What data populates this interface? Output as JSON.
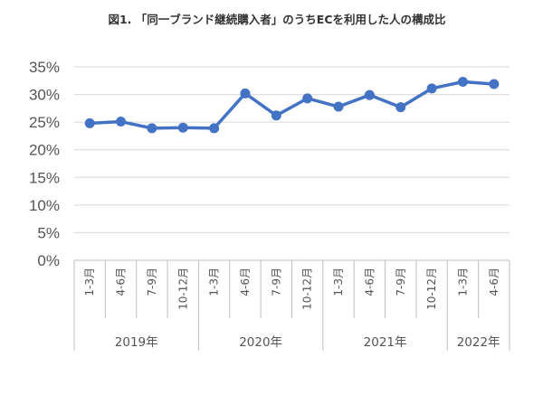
{
  "chart_data": {
    "type": "line",
    "title": "図1. 「同一ブランド継続購入者」のうちECを利用した人の構成比",
    "xlabel": "",
    "ylabel": "",
    "ylim": [
      0,
      35
    ],
    "ytick_values": [
      0,
      5,
      10,
      15,
      20,
      25,
      30,
      35
    ],
    "ytick_labels": [
      "0%",
      "5%",
      "10%",
      "15%",
      "20%",
      "25%",
      "30%",
      "35%"
    ],
    "grid": true,
    "legend": "none",
    "categories": [
      "1-3月",
      "4-6月",
      "7-9月",
      "10-12月",
      "1-3月",
      "4-6月",
      "7-9月",
      "10-12月",
      "1-3月",
      "4-6月",
      "7-9月",
      "10-12月",
      "1-3月",
      "4-6月"
    ],
    "groups": [
      {
        "label": "2019年",
        "count": 4
      },
      {
        "label": "2020年",
        "count": 4
      },
      {
        "label": "2021年",
        "count": 4
      },
      {
        "label": "2022年",
        "count": 2
      }
    ],
    "series": [
      {
        "values": [
          24.8,
          25.1,
          23.9,
          24.0,
          23.9,
          30.2,
          26.2,
          29.3,
          27.8,
          29.9,
          27.7,
          31.1,
          32.3,
          31.9
        ],
        "color": "#4472c4"
      }
    ]
  }
}
